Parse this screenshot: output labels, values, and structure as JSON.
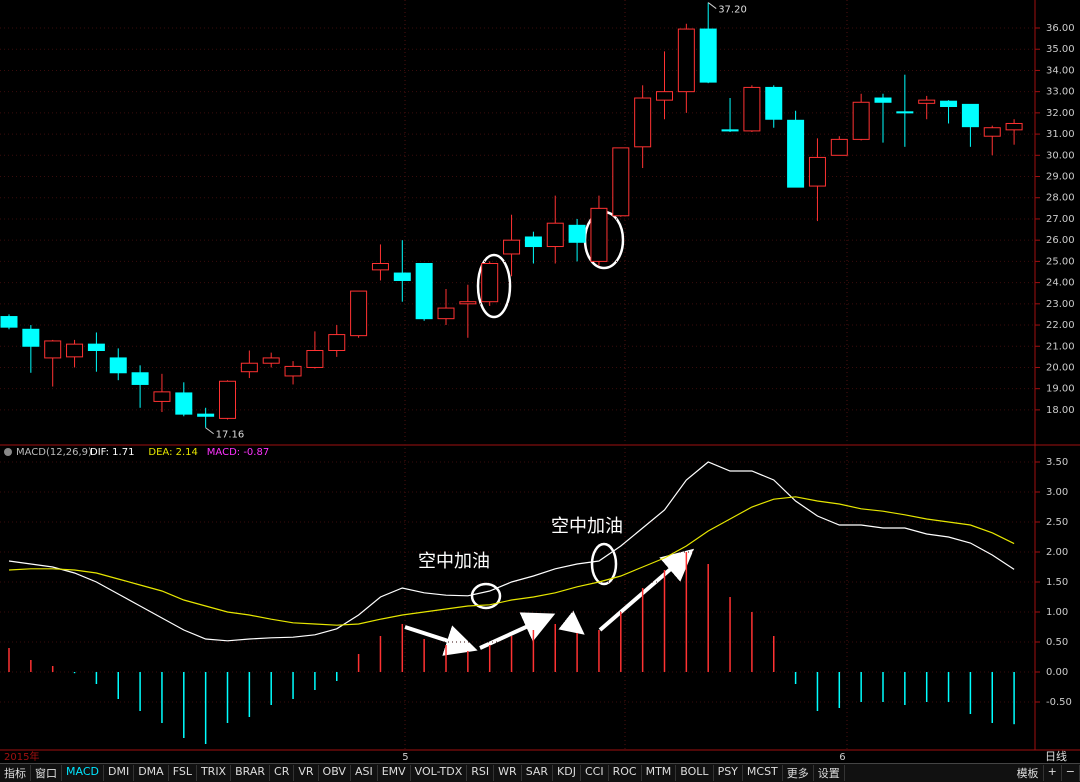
{
  "chart_data": [
    {
      "type": "candlestick",
      "up_color": "#ff3232",
      "down_color": "#00ffff",
      "open": [
        22.4,
        21.8,
        20.45,
        20.5,
        21.1,
        20.45,
        19.75,
        18.4,
        18.8,
        17.8,
        17.6,
        19.8,
        20.2,
        19.6,
        20.0,
        20.8,
        21.5,
        24.6,
        24.45,
        24.9,
        22.3,
        23.0,
        23.1,
        25.35,
        26.15,
        25.7,
        26.7,
        25.0,
        27.15,
        30.4,
        32.6,
        33.0,
        35.95,
        31.2,
        31.15,
        33.2,
        31.65,
        28.55,
        30.0,
        30.75,
        32.7,
        32.05,
        32.45,
        32.55,
        32.4,
        30.9,
        31.2
      ],
      "high": [
        22.5,
        22.0,
        21.3,
        21.3,
        21.65,
        20.9,
        20.1,
        19.7,
        19.3,
        18.1,
        19.4,
        20.8,
        20.7,
        20.3,
        21.7,
        22.0,
        23.6,
        25.8,
        26.0,
        24.9,
        23.7,
        23.9,
        25.0,
        27.2,
        26.4,
        28.1,
        27.0,
        28.1,
        30.35,
        33.3,
        34.9,
        36.2,
        37.2,
        32.7,
        33.3,
        33.3,
        32.1,
        30.8,
        30.9,
        32.9,
        32.9,
        33.8,
        32.8,
        32.6,
        32.4,
        31.4,
        31.7
      ],
      "low": [
        21.8,
        19.75,
        19.1,
        20.0,
        19.8,
        19.4,
        18.1,
        17.9,
        17.7,
        17.16,
        17.55,
        19.5,
        20.0,
        19.2,
        19.95,
        20.5,
        21.4,
        24.1,
        23.1,
        22.2,
        22.0,
        21.4,
        22.9,
        24.3,
        24.9,
        24.9,
        25.0,
        24.8,
        27.1,
        29.4,
        31.7,
        32.0,
        33.4,
        31.1,
        31.1,
        31.3,
        28.5,
        26.9,
        30.0,
        30.7,
        30.6,
        30.4,
        31.7,
        31.5,
        30.4,
        30.0,
        30.5
      ],
      "close": [
        21.9,
        21.0,
        21.25,
        21.1,
        20.8,
        19.75,
        19.2,
        18.85,
        17.8,
        17.7,
        19.35,
        20.2,
        20.45,
        20.05,
        20.8,
        21.55,
        23.6,
        24.9,
        24.1,
        22.3,
        22.8,
        23.1,
        24.9,
        26.0,
        25.7,
        26.8,
        25.9,
        27.5,
        30.35,
        32.7,
        33.0,
        35.95,
        33.45,
        31.15,
        33.2,
        31.7,
        28.5,
        29.9,
        30.75,
        32.5,
        32.5,
        32.0,
        32.6,
        32.3,
        31.35,
        31.3,
        31.5
      ],
      "high_label": "37.20",
      "low_label": "17.16",
      "ylim": [
        16.44,
        37.32
      ],
      "yticks": [
        {
          "value": 18,
          "label": "18.00"
        },
        {
          "value": 19,
          "label": "19.00"
        },
        {
          "value": 20,
          "label": "20.00"
        },
        {
          "value": 21,
          "label": "21.00"
        },
        {
          "value": 22,
          "label": "22.00"
        },
        {
          "value": 23,
          "label": "23.00"
        },
        {
          "value": 24,
          "label": "24.00"
        },
        {
          "value": 25,
          "label": "25.00"
        },
        {
          "value": 26,
          "label": "26.00"
        },
        {
          "value": 27,
          "label": "27.00"
        },
        {
          "value": 28,
          "label": "28.00"
        },
        {
          "value": 29,
          "label": "29.00"
        },
        {
          "value": 30,
          "label": "30.00"
        },
        {
          "value": 31,
          "label": "31.00"
        },
        {
          "value": 32,
          "label": "32.00"
        },
        {
          "value": 33,
          "label": "33.00"
        },
        {
          "value": 34,
          "label": "34.00"
        },
        {
          "value": 35,
          "label": "35.00"
        },
        {
          "value": 36,
          "label": "36.00"
        }
      ]
    },
    {
      "type": "macd",
      "indicator": "MACD(12,26,9)",
      "period": "日线",
      "categories": [
        "2015年",
        null,
        null,
        null,
        null,
        null,
        null,
        null,
        null,
        null,
        null,
        null,
        null,
        null,
        null,
        null,
        null,
        null,
        "5",
        null,
        null,
        null,
        null,
        null,
        null,
        null,
        null,
        null,
        null,
        null,
        null,
        null,
        null,
        null,
        null,
        null,
        null,
        null,
        "6",
        null,
        null,
        null,
        null,
        null,
        null,
        null,
        null
      ],
      "series": [
        {
          "label": "DIF: 1.71",
          "color": "#ffffff",
          "style": "line",
          "values": [
            1.85,
            1.8,
            1.75,
            1.65,
            1.5,
            1.3,
            1.1,
            0.9,
            0.7,
            0.55,
            0.52,
            0.55,
            0.57,
            0.58,
            0.62,
            0.72,
            0.95,
            1.25,
            1.4,
            1.32,
            1.28,
            1.27,
            1.35,
            1.5,
            1.6,
            1.72,
            1.8,
            1.85,
            2.1,
            2.4,
            2.7,
            3.2,
            3.5,
            3.35,
            3.35,
            3.2,
            2.85,
            2.6,
            2.45,
            2.45,
            2.4,
            2.4,
            2.3,
            2.25,
            2.15,
            1.95,
            1.71
          ]
        },
        {
          "label": "DEA: 2.14",
          "color": "#e6e600",
          "style": "line",
          "values": [
            1.7,
            1.72,
            1.72,
            1.7,
            1.65,
            1.55,
            1.45,
            1.35,
            1.2,
            1.1,
            1.0,
            0.95,
            0.88,
            0.82,
            0.8,
            0.78,
            0.8,
            0.88,
            0.95,
            1.0,
            1.05,
            1.1,
            1.12,
            1.2,
            1.25,
            1.32,
            1.42,
            1.5,
            1.6,
            1.75,
            1.9,
            2.1,
            2.35,
            2.55,
            2.75,
            2.88,
            2.92,
            2.85,
            2.8,
            2.72,
            2.68,
            2.62,
            2.55,
            2.5,
            2.45,
            2.32,
            2.14
          ]
        },
        {
          "label": "MACD: -0.87",
          "color": "#ff33ff",
          "style": "bar",
          "up_color": "#ff3232",
          "down_color": "#00ffff",
          "values": [
            0.4,
            0.2,
            0.1,
            -0.02,
            -0.2,
            -0.45,
            -0.65,
            -0.85,
            -1.1,
            -1.2,
            -0.85,
            -0.75,
            -0.55,
            -0.45,
            -0.3,
            -0.15,
            0.3,
            0.6,
            0.8,
            0.55,
            0.45,
            0.35,
            0.45,
            0.6,
            0.7,
            0.8,
            0.65,
            0.7,
            1.0,
            1.4,
            1.7,
            2.0,
            1.8,
            1.25,
            1.0,
            0.6,
            -0.2,
            -0.65,
            -0.6,
            -0.5,
            -0.5,
            -0.55,
            -0.5,
            -0.5,
            -0.7,
            -0.85,
            -0.87
          ]
        }
      ],
      "annotations": [
        "空中加油",
        "空中加油"
      ],
      "ylim": [
        -1.3,
        3.6
      ],
      "yticks": [
        {
          "value": -0.5,
          "label": "-0.50"
        },
        {
          "value": 0,
          "label": "0.00"
        },
        {
          "value": 0.5,
          "label": "0.50"
        },
        {
          "value": 1,
          "label": "1.00"
        },
        {
          "value": 1.5,
          "label": "1.50"
        },
        {
          "value": 2,
          "label": "2.00"
        },
        {
          "value": 2.5,
          "label": "2.50"
        },
        {
          "value": 3,
          "label": "3.00"
        },
        {
          "value": 3.5,
          "label": "3.50"
        }
      ]
    }
  ],
  "toolbar": {
    "tabs": [
      "指标",
      "窗口",
      "MACD",
      "DMI",
      "DMA",
      "FSL",
      "TRIX",
      "BRAR",
      "CR",
      "VR",
      "OBV",
      "ASI",
      "EMV",
      "VOL-TDX",
      "RSI",
      "WR",
      "SAR",
      "KDJ",
      "CCI",
      "ROC",
      "MTM",
      "BOLL",
      "PSY",
      "MCST",
      "更多",
      "设置"
    ],
    "right_tabs": [
      "模板",
      "+",
      "−"
    ]
  }
}
